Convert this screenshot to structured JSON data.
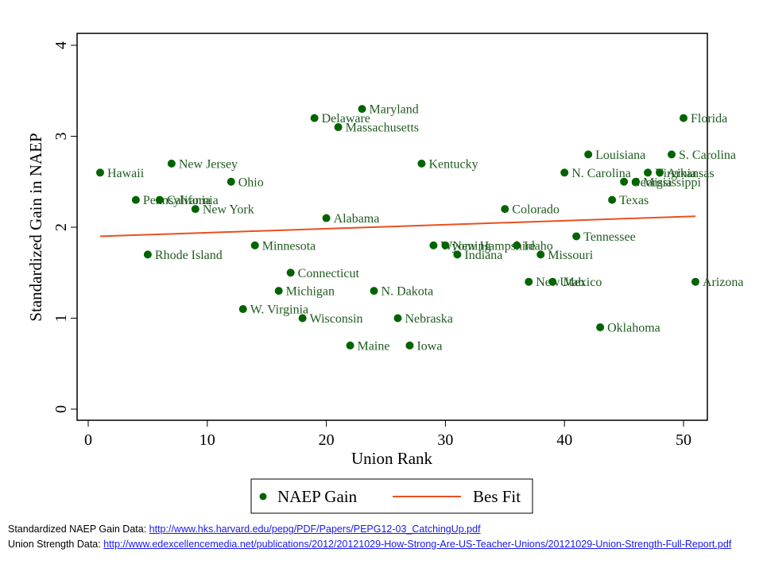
{
  "chart_data": {
    "type": "scatter",
    "title": "",
    "xlabel": "Union Rank",
    "ylabel": "Standardized Gain in NAEP",
    "xlim": [
      -1,
      52
    ],
    "ylim": [
      -0.1,
      4.1
    ],
    "xticks": [
      0,
      10,
      20,
      30,
      40,
      50
    ],
    "yticks": [
      0,
      1,
      2,
      3,
      4
    ],
    "grid": false,
    "legend_position": "bottom-center",
    "colors": {
      "points": "#006400",
      "fit": "#e8501e",
      "labels": "#1f5c1f"
    },
    "series": [
      {
        "name": "NAEP Gain",
        "kind": "scatter",
        "points": [
          {
            "label": "Hawaii",
            "x": 1,
            "y": 2.6
          },
          {
            "label": "Pennsylvania",
            "x": 4,
            "y": 2.3
          },
          {
            "label": "Rhode Island",
            "x": 5,
            "y": 1.7
          },
          {
            "label": "California",
            "x": 6,
            "y": 2.3
          },
          {
            "label": "New Jersey",
            "x": 7,
            "y": 2.7
          },
          {
            "label": "New York",
            "x": 9,
            "y": 2.2
          },
          {
            "label": "Ohio",
            "x": 12,
            "y": 2.5
          },
          {
            "label": "W. Virginia",
            "x": 13,
            "y": 1.1
          },
          {
            "label": "Minnesota",
            "x": 14,
            "y": 1.8
          },
          {
            "label": "Michigan",
            "x": 16,
            "y": 1.3
          },
          {
            "label": "Connecticut",
            "x": 17,
            "y": 1.5
          },
          {
            "label": "Wisconsin",
            "x": 18,
            "y": 1.0
          },
          {
            "label": "Delaware",
            "x": 19,
            "y": 3.2
          },
          {
            "label": "Alabama",
            "x": 20,
            "y": 2.1
          },
          {
            "label": "Massachusetts",
            "x": 21,
            "y": 3.1
          },
          {
            "label": "Maine",
            "x": 22,
            "y": 0.7
          },
          {
            "label": "Maryland",
            "x": 23,
            "y": 3.3
          },
          {
            "label": "N. Dakota",
            "x": 24,
            "y": 1.3
          },
          {
            "label": "Nebraska",
            "x": 26,
            "y": 1.0
          },
          {
            "label": "Iowa",
            "x": 27,
            "y": 0.7
          },
          {
            "label": "Kentucky",
            "x": 28,
            "y": 2.7
          },
          {
            "label": "Wyoming",
            "x": 29,
            "y": 1.8
          },
          {
            "label": "New Hampshire",
            "x": 30,
            "y": 1.8
          },
          {
            "label": "Indiana",
            "x": 31,
            "y": 1.7
          },
          {
            "label": "Colorado",
            "x": 35,
            "y": 2.2
          },
          {
            "label": "Idaho",
            "x": 36,
            "y": 1.8
          },
          {
            "label": "New Mexico",
            "x": 37,
            "y": 1.4
          },
          {
            "label": "Missouri",
            "x": 38,
            "y": 1.7
          },
          {
            "label": "Utah",
            "x": 39,
            "y": 1.4
          },
          {
            "label": "N. Carolina",
            "x": 40,
            "y": 2.6
          },
          {
            "label": "Tennessee",
            "x": 41,
            "y": 1.9
          },
          {
            "label": "Louisiana",
            "x": 42,
            "y": 2.8
          },
          {
            "label": "Oklahoma",
            "x": 43,
            "y": 0.9
          },
          {
            "label": "Texas",
            "x": 44,
            "y": 2.3
          },
          {
            "label": "Georgia",
            "x": 45,
            "y": 2.5
          },
          {
            "label": "Mississippi",
            "x": 46,
            "y": 2.5
          },
          {
            "label": "Virginia",
            "x": 47,
            "y": 2.6
          },
          {
            "label": "Arkansas",
            "x": 48,
            "y": 2.6
          },
          {
            "label": "S. Carolina",
            "x": 49,
            "y": 2.8
          },
          {
            "label": "Florida",
            "x": 50,
            "y": 3.2
          },
          {
            "label": "Arizona",
            "x": 51,
            "y": 1.4
          }
        ]
      },
      {
        "name": "Bes Fit",
        "kind": "line",
        "x": [
          1,
          51
        ],
        "y": [
          1.9,
          2.12
        ]
      }
    ]
  },
  "footer": {
    "line1_label": "Standardized NAEP Gain Data: ",
    "line1_link": "http://www.hks.harvard.edu/pepg/PDF/Papers/PEPG12-03_CatchingUp.pdf",
    "line2_label": "Union Strength Data: ",
    "line2_link": "http://www.edexcellencemedia.net/publications/2012/20121029-How-Strong-Are-US-Teacher-Unions/20121029-Union-Strength-Full-Report.pdf"
  }
}
